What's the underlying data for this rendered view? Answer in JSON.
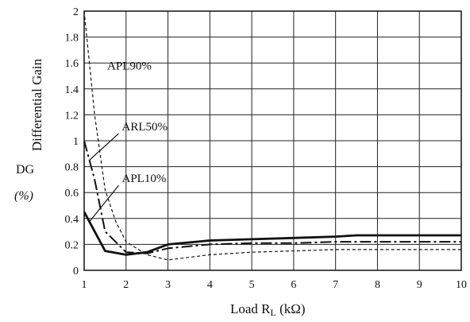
{
  "chart_data": {
    "type": "line",
    "title": "",
    "ylabel": "Differential Gain",
    "ylabel_symbol": "DG",
    "ylabel_unit": "(%)",
    "xlabel_parts": [
      "Load R",
      "L",
      " (kΩ)"
    ],
    "xlim": [
      1,
      10
    ],
    "ylim": [
      0,
      2
    ],
    "xticks": [
      "1",
      "2",
      "3",
      "4",
      "5",
      "6",
      "7",
      "8",
      "9",
      "10"
    ],
    "yticks": [
      "0",
      "0.2",
      "0.4",
      "0.6",
      "0.8",
      "1",
      "1.2",
      "1.4",
      "1.6",
      "1.8",
      "2"
    ],
    "grid": true,
    "series": [
      {
        "name": "APL90%",
        "style": "dashed",
        "x": [
          1.0,
          1.25,
          1.5,
          1.75,
          2.0,
          2.5,
          3.0,
          3.5,
          4.0,
          5.0,
          6.0,
          7.0,
          8.0,
          9.0,
          10.0
        ],
        "y": [
          2.0,
          1.2,
          0.62,
          0.38,
          0.22,
          0.12,
          0.08,
          0.1,
          0.12,
          0.14,
          0.15,
          0.16,
          0.16,
          0.16,
          0.16
        ]
      },
      {
        "name": "ARL50%",
        "style": "dashdot",
        "x": [
          1.0,
          1.25,
          1.5,
          1.75,
          2.0,
          2.5,
          3.0,
          4.0,
          5.0,
          6.0,
          7.0,
          8.0,
          9.0,
          10.0
        ],
        "y": [
          1.0,
          0.7,
          0.3,
          0.22,
          0.14,
          0.13,
          0.17,
          0.2,
          0.21,
          0.21,
          0.22,
          0.22,
          0.22,
          0.22
        ]
      },
      {
        "name": "APL10%",
        "style": "solid",
        "x": [
          1.0,
          1.25,
          1.5,
          2.0,
          2.5,
          3.0,
          4.0,
          5.0,
          6.0,
          7.0,
          7.5,
          8.0,
          9.0,
          10.0
        ],
        "y": [
          0.45,
          0.3,
          0.15,
          0.12,
          0.14,
          0.2,
          0.23,
          0.24,
          0.25,
          0.26,
          0.27,
          0.27,
          0.27,
          0.27
        ]
      }
    ],
    "annotations": [
      {
        "text": "APL90%",
        "series": "APL90%",
        "x": 1.55,
        "y": 1.55
      },
      {
        "text": "ARL50%",
        "series": "ARL50%",
        "x": 1.9,
        "y": 1.08
      },
      {
        "text": "APL10%",
        "series": "APL10%",
        "x": 1.9,
        "y": 0.68
      }
    ]
  }
}
